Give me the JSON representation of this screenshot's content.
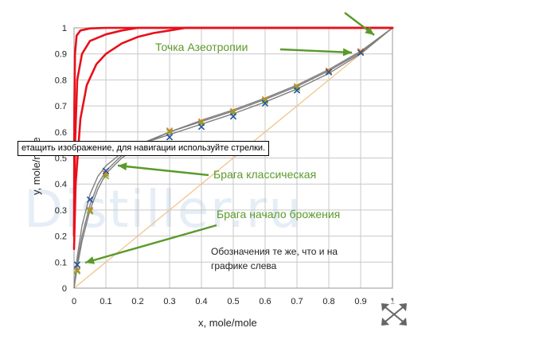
{
  "chart_data": {
    "type": "scatter",
    "title": "",
    "xlabel": "x, mole/mole",
    "ylabel": "y, mole/mole",
    "xlim": [
      0,
      1
    ],
    "ylim": [
      0,
      1
    ],
    "xticks": [
      "0",
      "0.1",
      "0.2",
      "0.3",
      "0.4",
      "0.5",
      "0.6",
      "0.7",
      "0.8",
      "0.9",
      "1"
    ],
    "yticks": [
      "0",
      "0.1",
      "0.2",
      "0.3",
      "0.4",
      "0.5",
      "0.6",
      "0.7",
      "0.8",
      "0.9",
      "1"
    ],
    "grid": true,
    "markers_blue": [
      {
        "x": 0.01,
        "y": 0.09
      },
      {
        "x": 0.05,
        "y": 0.34
      },
      {
        "x": 0.1,
        "y": 0.45
      },
      {
        "x": 0.3,
        "y": 0.58
      },
      {
        "x": 0.4,
        "y": 0.62
      },
      {
        "x": 0.5,
        "y": 0.66
      },
      {
        "x": 0.6,
        "y": 0.71
      },
      {
        "x": 0.7,
        "y": 0.76
      },
      {
        "x": 0.8,
        "y": 0.83
      },
      {
        "x": 0.9,
        "y": 0.905
      }
    ],
    "markers_orange": [
      {
        "x": 0.01,
        "y": 0.07
      },
      {
        "x": 0.05,
        "y": 0.3
      },
      {
        "x": 0.1,
        "y": 0.44
      },
      {
        "x": 0.3,
        "y": 0.605
      },
      {
        "x": 0.4,
        "y": 0.64
      },
      {
        "x": 0.5,
        "y": 0.68
      },
      {
        "x": 0.6,
        "y": 0.725
      },
      {
        "x": 0.7,
        "y": 0.775
      },
      {
        "x": 0.8,
        "y": 0.835
      },
      {
        "x": 0.9,
        "y": 0.91
      }
    ],
    "markers_green": [
      {
        "x": 0.01,
        "y": 0.065
      },
      {
        "x": 0.05,
        "y": 0.295
      },
      {
        "x": 0.1,
        "y": 0.43
      },
      {
        "x": 0.3,
        "y": 0.6
      },
      {
        "x": 0.4,
        "y": 0.635
      },
      {
        "x": 0.5,
        "y": 0.675
      },
      {
        "x": 0.6,
        "y": 0.72
      },
      {
        "x": 0.7,
        "y": 0.77
      },
      {
        "x": 0.8,
        "y": 0.83
      },
      {
        "x": 0.9,
        "y": 0.905
      }
    ],
    "curves_gray": [
      [
        [
          0,
          0
        ],
        [
          0.01,
          0.12
        ],
        [
          0.025,
          0.24
        ],
        [
          0.05,
          0.36
        ],
        [
          0.075,
          0.43
        ],
        [
          0.1,
          0.47
        ],
        [
          0.15,
          0.52
        ],
        [
          0.2,
          0.55
        ],
        [
          0.3,
          0.59
        ],
        [
          0.4,
          0.63
        ],
        [
          0.5,
          0.67
        ],
        [
          0.6,
          0.715
        ],
        [
          0.7,
          0.765
        ],
        [
          0.8,
          0.825
        ],
        [
          0.9,
          0.9
        ],
        [
          1,
          1
        ]
      ],
      [
        [
          0,
          0
        ],
        [
          0.01,
          0.1
        ],
        [
          0.025,
          0.2
        ],
        [
          0.05,
          0.32
        ],
        [
          0.075,
          0.4
        ],
        [
          0.1,
          0.45
        ],
        [
          0.15,
          0.51
        ],
        [
          0.2,
          0.55
        ],
        [
          0.3,
          0.6
        ],
        [
          0.4,
          0.64
        ],
        [
          0.5,
          0.68
        ],
        [
          0.6,
          0.725
        ],
        [
          0.7,
          0.775
        ],
        [
          0.8,
          0.835
        ],
        [
          0.9,
          0.905
        ],
        [
          1,
          1
        ]
      ],
      [
        [
          0,
          0
        ],
        [
          0.01,
          0.08
        ],
        [
          0.025,
          0.18
        ],
        [
          0.05,
          0.3
        ],
        [
          0.075,
          0.38
        ],
        [
          0.1,
          0.44
        ],
        [
          0.15,
          0.5
        ],
        [
          0.2,
          0.545
        ],
        [
          0.3,
          0.6
        ],
        [
          0.4,
          0.645
        ],
        [
          0.5,
          0.685
        ],
        [
          0.6,
          0.73
        ],
        [
          0.7,
          0.78
        ],
        [
          0.8,
          0.84
        ],
        [
          0.9,
          0.91
        ],
        [
          1,
          1
        ]
      ]
    ],
    "curves_red": [
      [
        [
          0,
          0.2
        ],
        [
          0.001,
          0.7
        ],
        [
          0.003,
          0.9
        ],
        [
          0.008,
          0.97
        ],
        [
          0.02,
          0.99
        ],
        [
          0.05,
          0.998
        ],
        [
          0.1,
          1
        ],
        [
          1,
          1
        ]
      ],
      [
        [
          0,
          0.2
        ],
        [
          0.003,
          0.55
        ],
        [
          0.01,
          0.8
        ],
        [
          0.025,
          0.9
        ],
        [
          0.05,
          0.95
        ],
        [
          0.1,
          0.975
        ],
        [
          0.15,
          0.99
        ],
        [
          0.2,
          1
        ],
        [
          1,
          1
        ]
      ],
      [
        [
          0,
          0.15
        ],
        [
          0.005,
          0.4
        ],
        [
          0.02,
          0.65
        ],
        [
          0.04,
          0.78
        ],
        [
          0.07,
          0.86
        ],
        [
          0.1,
          0.9
        ],
        [
          0.15,
          0.94
        ],
        [
          0.2,
          0.965
        ],
        [
          0.25,
          0.98
        ],
        [
          0.3,
          0.99
        ],
        [
          0.35,
          1
        ],
        [
          1,
          1
        ]
      ]
    ],
    "diagonal": [
      [
        0,
        0
      ],
      [
        1,
        1
      ]
    ]
  },
  "annotations": {
    "azeotrope": "Точка Азеотропии",
    "braga_classic": "Брага классическая",
    "braga_start": "Брага начало брожения",
    "note_line1": "Обозначения те же, что и на",
    "note_line2": "графике слева"
  },
  "watermark": "Distiller.ru",
  "tooltip": "етащить изображение, для навигации используйте стрелки.",
  "colors": {
    "red": "#e8101a",
    "gray": "#7f7f7f",
    "diagonal": "#f2c48c",
    "blue": "#2255a0",
    "orange": "#f07820",
    "green": "#7ba832",
    "annotation_green": "#5a9a2a"
  },
  "icons": {
    "expand": "expand-arrows-icon"
  }
}
